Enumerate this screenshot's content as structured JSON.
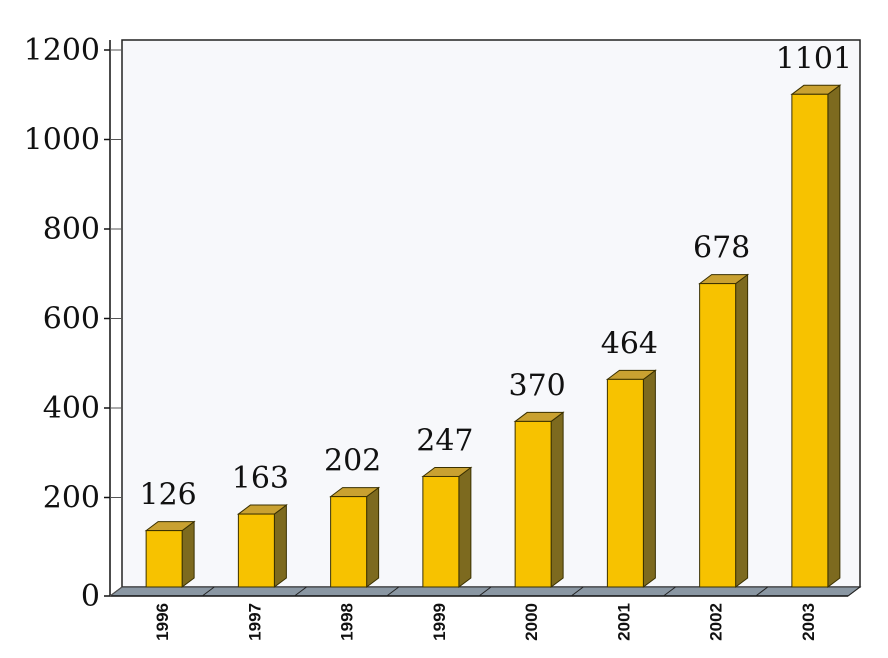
{
  "chart_data": {
    "type": "bar",
    "categories": [
      "1996",
      "1997",
      "1998",
      "1999",
      "2000",
      "2001",
      "2002",
      "2003"
    ],
    "values": [
      126,
      163,
      202,
      247,
      370,
      464,
      678,
      1101
    ],
    "data_labels": [
      "126",
      "163",
      "202",
      "247",
      "370",
      "464",
      "678",
      "1101"
    ],
    "title": "",
    "xlabel": "",
    "ylabel": "",
    "ylim": [
      0,
      1200
    ],
    "yticks": [
      0,
      200,
      400,
      600,
      800,
      1000,
      1200
    ],
    "ytick_labels": [
      "0",
      "200",
      "400",
      "600",
      "800",
      "1000",
      "1200"
    ],
    "grid": false,
    "legend": "none",
    "style": "3d-bar",
    "colors": {
      "bar_front": "#f7c200",
      "bar_side": "#7d6a1f",
      "bar_top": "#c9a131",
      "bar_outline": "#3a3000",
      "floor": "#8a97a3",
      "plot_background": "#f7f8fb"
    }
  }
}
